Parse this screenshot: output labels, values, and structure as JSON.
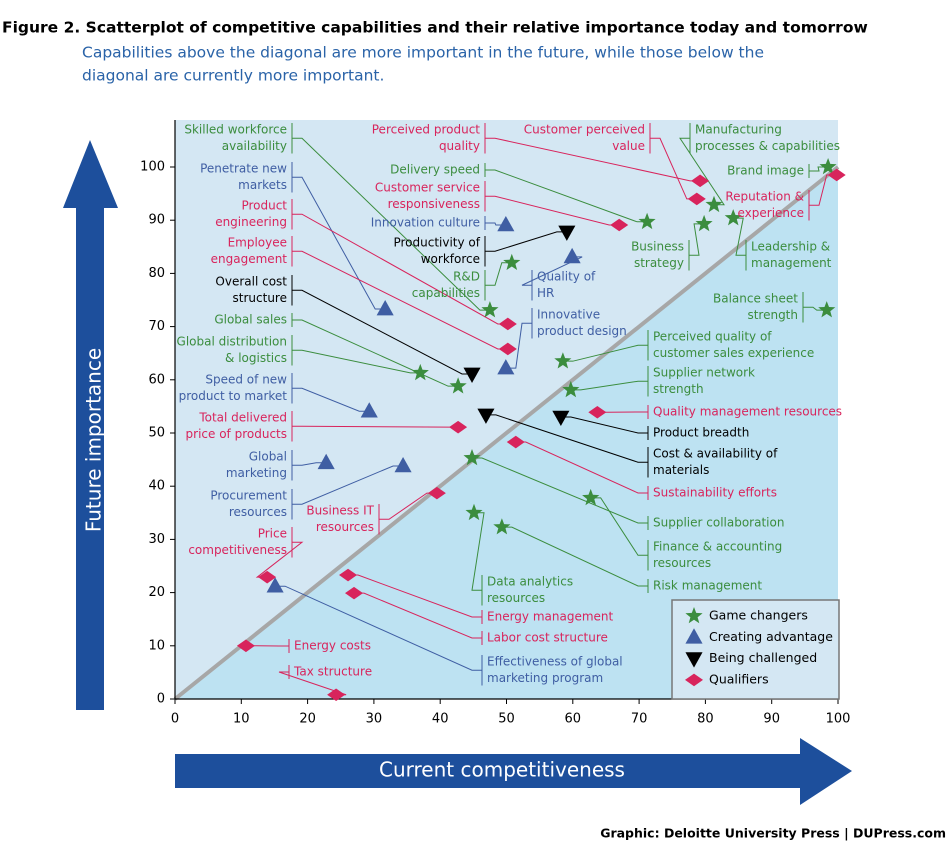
{
  "chart_data": {
    "type": "scatter",
    "title": "Figure 2. Scatterplot of competitive capabilities and their relative importance today and tomorrow",
    "subtitle": [
      "Capabilities above the diagonal are more important in the future, while those below the",
      "diagonal are currently more important."
    ],
    "x_label": "Current competitiveness",
    "y_label": "Future importance",
    "source": "Graphic: Deloitte University Press  |  DUPress.com",
    "xlim": [
      0,
      100
    ],
    "ylim": [
      0,
      100
    ],
    "xticks": [
      0,
      10,
      20,
      30,
      40,
      50,
      60,
      70,
      80,
      90,
      100
    ],
    "yticks": [
      0,
      10,
      20,
      30,
      40,
      50,
      60,
      70,
      80,
      90,
      100
    ],
    "diagonal": true,
    "legend": "bottom-right",
    "series": [
      {
        "name": "Game changers",
        "color": "#3b8d3e",
        "marker": "star",
        "x": [
          47.5,
          71.2,
          81.3,
          98.5,
          79.8,
          84.2,
          98.3,
          50.8,
          42.7,
          37,
          58.5,
          59.7,
          44.8,
          62.7,
          49.3,
          45.1
        ],
        "values": [
          73.1,
          89.7,
          92.9,
          100,
          89.3,
          90.4,
          73.1,
          82,
          58.8,
          61.3,
          63.5,
          58.1,
          45.3,
          37.8,
          32.3,
          35
        ],
        "labels": [
          [
            "Skilled workforce",
            "availability"
          ],
          [
            "Delivery speed"
          ],
          [
            "Manufacturing",
            "processes & capabilities"
          ],
          [
            "Brand image"
          ],
          [
            "Business",
            "strategy"
          ],
          [
            "Leadership &",
            "management"
          ],
          [
            "Balance sheet",
            "strength"
          ],
          [
            "R&D",
            "capabilities"
          ],
          [
            "Global sales"
          ],
          [
            "Global distribution",
            "& logistics"
          ],
          [
            "Perceived quality of",
            "customer sales experience"
          ],
          [
            "Supplier network",
            "strength"
          ],
          [
            "Supplier collaboration"
          ],
          [
            "Finance & accounting",
            "resources"
          ],
          [
            "Risk management"
          ],
          [
            "Data analytics",
            "resources"
          ]
        ]
      },
      {
        "name": "Creating advantage",
        "color": "#3f5ea3",
        "marker": "triangle-up",
        "x": [
          31.7,
          49.9,
          59.9,
          49.9,
          29.3,
          22.8,
          34.4,
          15.1
        ],
        "values": [
          73.3,
          89.1,
          83.1,
          62.2,
          54.1,
          44.4,
          43.8,
          21.2
        ],
        "labels": [
          [
            "Penetrate new",
            "markets"
          ],
          [
            "Innovation culture"
          ],
          [
            "Quality of",
            "HR"
          ],
          [
            "Innovative",
            "product design"
          ],
          [
            "Speed of new",
            "product to market"
          ],
          [
            "Global",
            "marketing"
          ],
          [
            "Procurement",
            "resources"
          ],
          [
            "Effectiveness of global",
            "marketing program"
          ]
        ]
      },
      {
        "name": "Being challenged",
        "color": "#000000",
        "marker": "triangle-down",
        "x": [
          59.1,
          44.8,
          58.2,
          46.9
        ],
        "values": [
          87.8,
          61.1,
          53,
          53.4
        ],
        "labels": [
          [
            "Productivity of",
            "workforce"
          ],
          [
            "Overall cost",
            "structure"
          ],
          [
            "Product breadth"
          ],
          [
            "Cost & availability of",
            "materials"
          ]
        ]
      },
      {
        "name": "Qualifiers",
        "color": "#d8245c",
        "marker": "diamond",
        "x": [
          79.2,
          78.7,
          99.8,
          67,
          50.2,
          50.2,
          42.7,
          63.7,
          51.4,
          39.5,
          13.9,
          26.1,
          27,
          10.7,
          24.3
        ],
        "values": [
          97.4,
          94,
          98.5,
          89.1,
          70.5,
          65.8,
          51.1,
          53.9,
          48.3,
          38.7,
          22.9,
          23.3,
          19.9,
          10,
          0.8
        ],
        "labels": [
          [
            "Perceived product",
            "quality"
          ],
          [
            "Customer perceived",
            "value"
          ],
          [
            "Reputation &",
            "experience"
          ],
          [
            "Customer service",
            "responsiveness"
          ],
          [
            "Product",
            "engineering"
          ],
          [
            "Employee",
            "engagement"
          ],
          [
            "Total delivered",
            "price of products"
          ],
          [
            "Quality management resources"
          ],
          [
            "Sustainability efforts"
          ],
          [
            "Business IT",
            "resources"
          ],
          [
            "Price",
            "competitiveness"
          ],
          [
            "Energy management"
          ],
          [
            "Labor cost structure"
          ],
          [
            "Energy costs"
          ],
          [
            "Tax structure"
          ]
        ]
      }
    ]
  }
}
